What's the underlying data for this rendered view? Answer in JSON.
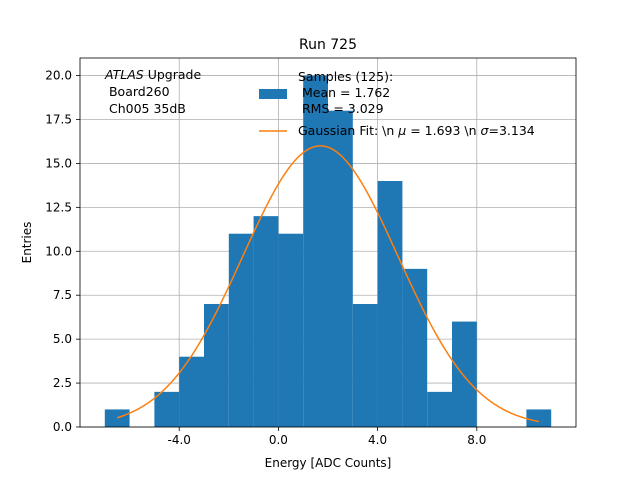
{
  "chart_data": {
    "type": "bar",
    "title": "Run 725",
    "xlabel": "Energy [ADC Counts]",
    "ylabel": "Entries",
    "xlim": [
      -8.0,
      12.0
    ],
    "ylim": [
      0,
      21
    ],
    "grid": true,
    "bin_width": 1.0,
    "bin_edges": [
      -7,
      -6,
      -5,
      -4,
      -3,
      -2,
      -1,
      0,
      1,
      2,
      3,
      4,
      5,
      6,
      7,
      8,
      9,
      10,
      11
    ],
    "counts": [
      1,
      0,
      2,
      4,
      7,
      11,
      12,
      11,
      20,
      18,
      7,
      14,
      9,
      2,
      6,
      0,
      0,
      1
    ],
    "x_ticks": [
      -4.0,
      0.0,
      4.0,
      8.0
    ],
    "x_tick_labels": [
      "-4.0",
      "0.0",
      "4.0",
      "8.0"
    ],
    "y_ticks": [
      0.0,
      2.5,
      5.0,
      7.5,
      10.0,
      12.5,
      15.0,
      17.5,
      20.0
    ],
    "y_tick_labels": [
      "0.0",
      "2.5",
      "5.0",
      "7.5",
      "10.0",
      "12.5",
      "15.0",
      "17.5",
      "20.0"
    ],
    "series": [
      {
        "name": "Samples (125):\n Mean = 1.762\n RMS = 3.029",
        "kind": "histogram",
        "color": "#1f77b4"
      },
      {
        "name": "Gaussian Fit: \\n $\\mu$ = 1.693 \\n $\\sigma$=3.134",
        "kind": "line",
        "color": "#ff7f0e",
        "mu": 1.693,
        "sigma": 3.134,
        "amplitude": 16.0,
        "x_range": [
          -6.5,
          10.5
        ]
      }
    ],
    "legend_position": "top-right",
    "annotation": {
      "italic": "ATLAS",
      "rest": " Upgrade",
      "line2": " Board260",
      "line3": " Ch005 35dB"
    },
    "legend": {
      "samples_line1": "Samples (125):",
      "samples_line2": " Mean = 1.762",
      "samples_line3": " RMS = 3.029",
      "fit_prefix": "Gaussian Fit: \\n ",
      "fit_mu": "μ",
      "fit_mid": " = 1.693 \\n ",
      "fit_sigma": "σ",
      "fit_end": "=3.134"
    }
  }
}
